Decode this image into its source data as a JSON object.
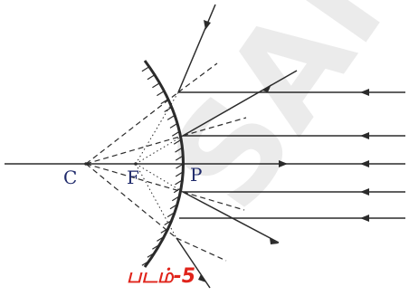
{
  "diagram": {
    "kind": "convex mirror ray diagram",
    "points": {
      "c": "C",
      "f": "F",
      "p": "P"
    },
    "caption": "படம்-5"
  },
  "watermark": "SAMPLE",
  "colors": {
    "rays": "#2b2b2b",
    "labels": "#1f2a6b",
    "caption": "#e0241b",
    "watermark": "#c8c8c8"
  }
}
